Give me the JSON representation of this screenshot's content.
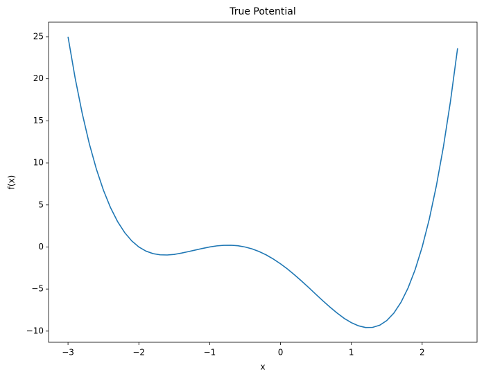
{
  "chart_data": {
    "type": "line",
    "title": "True Potential",
    "x_label": "x",
    "y_label": "f(x)",
    "color": "#1f77b4",
    "x": [
      -3.0,
      -2.9,
      -2.8,
      -2.7,
      -2.6,
      -2.5,
      -2.4,
      -2.3,
      -2.2,
      -2.1,
      -2.0,
      -1.9,
      -1.8,
      -1.7,
      -1.6,
      -1.5,
      -1.4,
      -1.3,
      -1.2,
      -1.1,
      -1.0,
      -0.9,
      -0.8,
      -0.7,
      -0.6,
      -0.5,
      -0.4,
      -0.3,
      -0.2,
      -0.1,
      0.0,
      0.1,
      0.2,
      0.3,
      0.4,
      0.5,
      0.6,
      0.7,
      0.8,
      0.9,
      1.0,
      1.1,
      1.2,
      1.3,
      1.4,
      1.5,
      1.6,
      1.7,
      1.8,
      1.9,
      2.0,
      2.1,
      2.2,
      2.3,
      2.4,
      2.5
    ],
    "values": [
      25.0,
      20.11,
      15.9,
      12.3,
      9.27,
      6.75,
      4.68,
      3.02,
      1.71,
      0.72,
      0.0,
      -0.49,
      -0.79,
      -0.93,
      -0.95,
      -0.88,
      -0.73,
      -0.55,
      -0.36,
      -0.17,
      0.0,
      0.13,
      0.2,
      0.21,
      0.15,
      0.0,
      -0.23,
      -0.55,
      -0.95,
      -1.44,
      -2.0,
      -2.63,
      -3.33,
      -4.07,
      -4.84,
      -5.63,
      -6.41,
      -7.16,
      -7.86,
      -8.49,
      -9.0,
      -9.37,
      -9.57,
      -9.56,
      -9.3,
      -8.75,
      -7.86,
      -6.59,
      -4.89,
      -2.71,
      0.0,
      3.3,
      7.26,
      11.92,
      17.35,
      23.63
    ],
    "xlim": [
      -3.275,
      2.775
    ],
    "ylim": [
      -11.33,
      26.73
    ],
    "xticks": [
      {
        "value": -3,
        "label": "−3"
      },
      {
        "value": -2,
        "label": "−2"
      },
      {
        "value": -1,
        "label": "−1"
      },
      0,
      1,
      2
    ],
    "yticks": [
      {
        "value": -10,
        "label": "−10"
      },
      {
        "value": -5,
        "label": "−5"
      },
      0,
      5,
      10,
      15,
      20,
      25
    ],
    "grid": false
  }
}
